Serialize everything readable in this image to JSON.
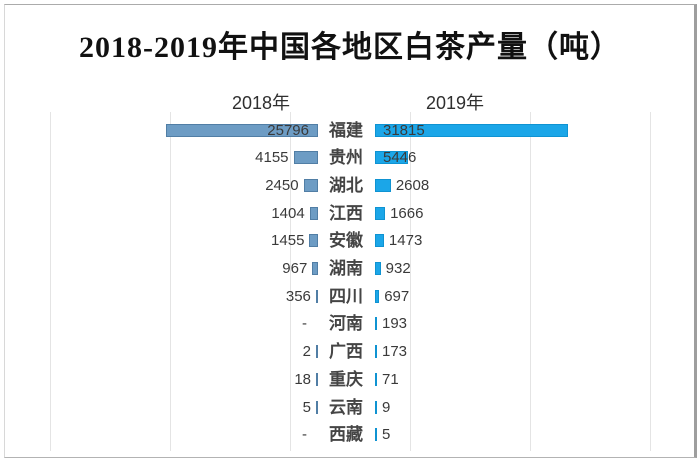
{
  "title": "2018-2019年中国各地区白茶产量（吨）",
  "chart_data": {
    "type": "bar",
    "subtype": "tornado-horizontal",
    "title": "2018-2019年中国各地区白茶产量（吨）",
    "unit": "吨",
    "categories": [
      "福建",
      "贵州",
      "湖北",
      "江西",
      "安徽",
      "湖南",
      "四川",
      "河南",
      "广西",
      "重庆",
      "云南",
      "西藏"
    ],
    "series": [
      {
        "name": "2018年",
        "side": "left",
        "color": "#6d9cc4",
        "values": [
          25796,
          4155,
          2450,
          1404,
          1455,
          967,
          356,
          null,
          2,
          18,
          5,
          null
        ],
        "labels": [
          "25796",
          "4155",
          "2450",
          "1404",
          "1455",
          "967",
          "356",
          "-",
          "2",
          "18",
          "5",
          "-"
        ]
      },
      {
        "name": "2019年",
        "side": "right",
        "color": "#1ba6e8",
        "values": [
          31815,
          5446,
          2608,
          1666,
          1473,
          932,
          697,
          193,
          173,
          71,
          9,
          5
        ],
        "labels": [
          "31815",
          "5446",
          "2608",
          "1666",
          "1473",
          "932",
          "697",
          "193",
          "173",
          "71",
          "9",
          "5"
        ]
      }
    ],
    "axis": {
      "left_max": 25796,
      "right_max": 31815,
      "gridlines": true
    },
    "colors": {
      "bar_2018": "#6d9cc4",
      "bar_2019": "#1ba6e8",
      "grid": "#e4e4e4"
    }
  }
}
